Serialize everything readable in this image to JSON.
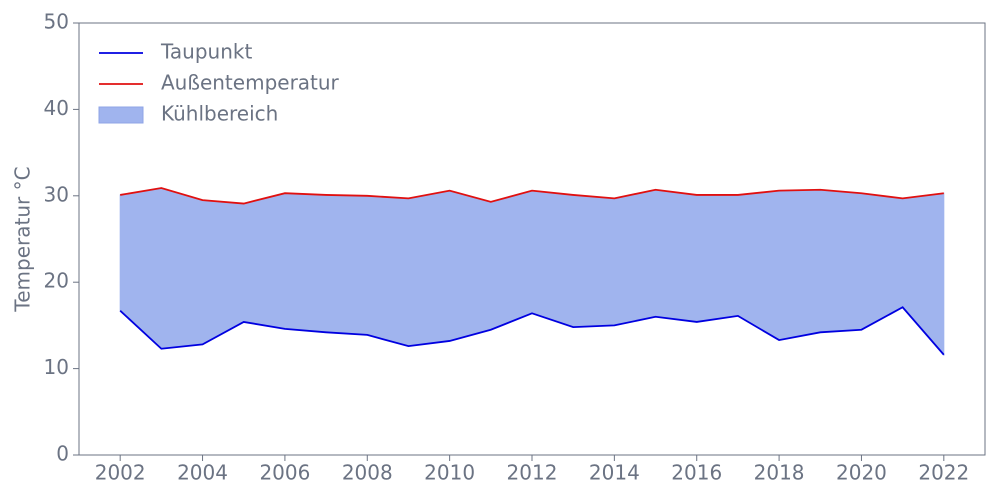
{
  "chart_data": {
    "type": "line",
    "x": [
      2002,
      2003,
      2004,
      2005,
      2006,
      2007,
      2008,
      2009,
      2010,
      2011,
      2012,
      2013,
      2014,
      2015,
      2016,
      2017,
      2018,
      2019,
      2020,
      2021,
      2022
    ],
    "series": [
      {
        "name": "Taupunkt",
        "color": "#0000e0",
        "values": [
          16.7,
          12.3,
          12.8,
          15.4,
          14.6,
          14.2,
          13.9,
          12.6,
          13.2,
          14.5,
          16.4,
          14.8,
          15.0,
          16.0,
          15.4,
          16.1,
          13.3,
          14.2,
          14.5,
          17.1,
          11.6
        ]
      },
      {
        "name": "Außentemperatur",
        "color": "#e01010",
        "values": [
          30.1,
          30.9,
          29.5,
          29.1,
          30.3,
          30.1,
          30.0,
          29.7,
          30.6,
          29.3,
          30.6,
          30.1,
          29.7,
          30.7,
          30.1,
          30.1,
          30.6,
          30.7,
          30.3,
          29.7,
          30.3
        ]
      }
    ],
    "fill_between": {
      "name": "Kühlbereich",
      "color": "#a0b4ee"
    },
    "ylabel": "Temperatur °C",
    "xlim": [
      2001,
      2023
    ],
    "xticks": [
      2002,
      2004,
      2006,
      2008,
      2010,
      2012,
      2014,
      2016,
      2018,
      2020,
      2022
    ],
    "ylim": [
      0,
      50
    ],
    "yticks": [
      0,
      10,
      20,
      30,
      40,
      50
    ],
    "legend": "upper-left"
  }
}
